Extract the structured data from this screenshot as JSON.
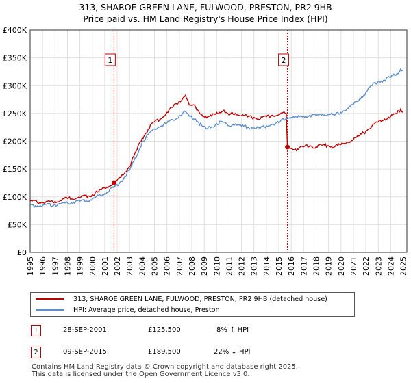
{
  "chart_data": {
    "type": "line",
    "title_line1": "313, SHAROE GREEN LANE, FULWOOD, PRESTON, PR2 9HB",
    "title_line2": "Price paid vs. HM Land Registry's House Price Index (HPI)",
    "xlim": [
      1995,
      2025.3
    ],
    "ylim": [
      0,
      400000
    ],
    "y_ticks": [
      {
        "value": 0,
        "label": "£0"
      },
      {
        "value": 50000,
        "label": "£50K"
      },
      {
        "value": 100000,
        "label": "£100K"
      },
      {
        "value": 150000,
        "label": "£150K"
      },
      {
        "value": 200000,
        "label": "£200K"
      },
      {
        "value": 250000,
        "label": "£250K"
      },
      {
        "value": 300000,
        "label": "£300K"
      },
      {
        "value": 350000,
        "label": "£350K"
      },
      {
        "value": 400000,
        "label": "£400K"
      }
    ],
    "x_ticks": [
      "1995",
      "1996",
      "1997",
      "1998",
      "1999",
      "2000",
      "2001",
      "2002",
      "2003",
      "2004",
      "2005",
      "2006",
      "2007",
      "2008",
      "2009",
      "2010",
      "2011",
      "2012",
      "2013",
      "2014",
      "2015",
      "2016",
      "2017",
      "2018",
      "2019",
      "2020",
      "2021",
      "2022",
      "2023",
      "2024",
      "2025"
    ],
    "series": [
      {
        "name": "313, SHAROE GREEN LANE, FULWOOD, PRESTON, PR2 9HB (detached house)",
        "color": "#c00000",
        "points": [
          [
            1995.0,
            92000
          ],
          [
            1996.0,
            90000
          ],
          [
            1997.0,
            92000
          ],
          [
            1998.0,
            97000
          ],
          [
            1999.0,
            99000
          ],
          [
            2000.0,
            104000
          ],
          [
            2000.5,
            109000
          ],
          [
            2001.0,
            116000
          ],
          [
            2001.74,
            125500
          ],
          [
            2002.3,
            135000
          ],
          [
            2003.0,
            155000
          ],
          [
            2003.6,
            185000
          ],
          [
            2004.0,
            205000
          ],
          [
            2004.5,
            222000
          ],
          [
            2005.0,
            235000
          ],
          [
            2005.5,
            240000
          ],
          [
            2006.0,
            252000
          ],
          [
            2006.5,
            262000
          ],
          [
            2007.0,
            272000
          ],
          [
            2007.5,
            283000
          ],
          [
            2007.8,
            265000
          ],
          [
            2008.3,
            262000
          ],
          [
            2008.8,
            248000
          ],
          [
            2009.2,
            242000
          ],
          [
            2009.6,
            245000
          ],
          [
            2010.0,
            252000
          ],
          [
            2010.5,
            254000
          ],
          [
            2011.0,
            247000
          ],
          [
            2011.5,
            250000
          ],
          [
            2012.0,
            246000
          ],
          [
            2012.5,
            244000
          ],
          [
            2013.0,
            243000
          ],
          [
            2013.5,
            240000
          ],
          [
            2014.0,
            244000
          ],
          [
            2014.5,
            247000
          ],
          [
            2015.0,
            248000
          ],
          [
            2015.6,
            250000
          ],
          [
            2015.69,
            189500
          ],
          [
            2016.0,
            187000
          ],
          [
            2016.5,
            186000
          ],
          [
            2017.0,
            190000
          ],
          [
            2017.5,
            192000
          ],
          [
            2018.0,
            190000
          ],
          [
            2018.5,
            193000
          ],
          [
            2019.0,
            192000
          ],
          [
            2019.5,
            190000
          ],
          [
            2020.0,
            194000
          ],
          [
            2020.5,
            198000
          ],
          [
            2021.0,
            203000
          ],
          [
            2021.5,
            210000
          ],
          [
            2022.0,
            218000
          ],
          [
            2022.5,
            228000
          ],
          [
            2023.0,
            235000
          ],
          [
            2023.5,
            240000
          ],
          [
            2024.0,
            245000
          ],
          [
            2024.5,
            250000
          ],
          [
            2024.8,
            258000
          ],
          [
            2025.0,
            252000
          ]
        ]
      },
      {
        "name": "HPI: Average price, detached house, Preston",
        "color": "#5b8fcf",
        "points": [
          [
            1995.0,
            85000
          ],
          [
            1996.0,
            84000
          ],
          [
            1997.0,
            86000
          ],
          [
            1998.0,
            89000
          ],
          [
            1999.0,
            92000
          ],
          [
            2000.0,
            96000
          ],
          [
            2001.0,
            106000
          ],
          [
            2001.74,
            116000
          ],
          [
            2002.3,
            128000
          ],
          [
            2003.0,
            148000
          ],
          [
            2003.6,
            175000
          ],
          [
            2004.0,
            198000
          ],
          [
            2004.5,
            212000
          ],
          [
            2005.0,
            222000
          ],
          [
            2005.5,
            227000
          ],
          [
            2006.0,
            233000
          ],
          [
            2006.5,
            238000
          ],
          [
            2007.0,
            246000
          ],
          [
            2007.5,
            253000
          ],
          [
            2007.8,
            245000
          ],
          [
            2008.3,
            240000
          ],
          [
            2008.8,
            228000
          ],
          [
            2009.2,
            222000
          ],
          [
            2009.6,
            226000
          ],
          [
            2010.0,
            232000
          ],
          [
            2010.5,
            234000
          ],
          [
            2011.0,
            228000
          ],
          [
            2011.5,
            231000
          ],
          [
            2012.0,
            227000
          ],
          [
            2012.5,
            225000
          ],
          [
            2013.0,
            224000
          ],
          [
            2013.5,
            223000
          ],
          [
            2014.0,
            228000
          ],
          [
            2014.5,
            231000
          ],
          [
            2015.0,
            233000
          ],
          [
            2015.69,
            243000
          ],
          [
            2016.0,
            243000
          ],
          [
            2016.5,
            243000
          ],
          [
            2017.0,
            245000
          ],
          [
            2017.5,
            247000
          ],
          [
            2018.0,
            246000
          ],
          [
            2018.5,
            249000
          ],
          [
            2019.0,
            248000
          ],
          [
            2019.5,
            247000
          ],
          [
            2020.0,
            252000
          ],
          [
            2020.5,
            259000
          ],
          [
            2021.0,
            266000
          ],
          [
            2021.5,
            276000
          ],
          [
            2022.0,
            288000
          ],
          [
            2022.5,
            300000
          ],
          [
            2023.0,
            308000
          ],
          [
            2023.5,
            310000
          ],
          [
            2024.0,
            315000
          ],
          [
            2024.5,
            322000
          ],
          [
            2024.8,
            330000
          ],
          [
            2025.0,
            328000
          ]
        ]
      }
    ],
    "markers": [
      {
        "id": "1",
        "x": 2001.74,
        "y": 125500
      },
      {
        "id": "2",
        "x": 2015.69,
        "y": 189500
      }
    ]
  },
  "legend": {
    "red_label": "313, SHAROE GREEN LANE, FULWOOD, PRESTON, PR2 9HB (detached house)",
    "blue_label": "HPI: Average price, detached house, Preston"
  },
  "transactions": [
    {
      "id": "1",
      "date": "28-SEP-2001",
      "price": "£125,500",
      "hpi": "8% ↑ HPI"
    },
    {
      "id": "2",
      "date": "09-SEP-2015",
      "price": "£189,500",
      "hpi": "22% ↓ HPI"
    }
  ],
  "footer": {
    "line1": "Contains HM Land Registry data © Crown copyright and database right 2025.",
    "line2": "This data is licensed under the Open Government Licence v3.0."
  },
  "colors": {
    "red": "#c00000",
    "blue": "#5b8fcf",
    "grid": "#e0e0e0",
    "marker_line": "#c00000"
  }
}
